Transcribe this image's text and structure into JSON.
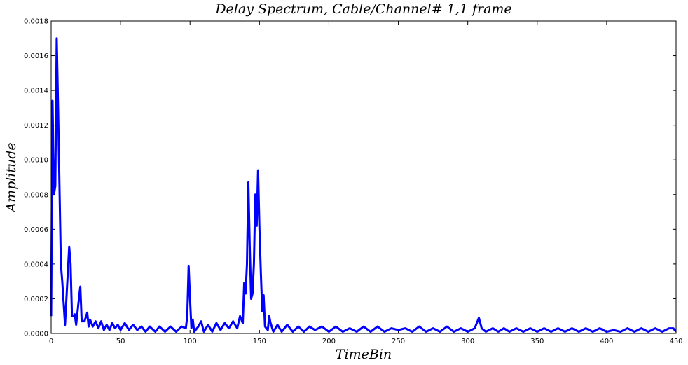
{
  "chart_data": {
    "type": "line",
    "title": "Delay Spectrum, Cable/Channel# 1,1 frame",
    "xlabel": "TimeBin",
    "ylabel": "Amplitude",
    "color": "#0000ff",
    "x": [
      0,
      1,
      2,
      3,
      4,
      5,
      7,
      8,
      10,
      11,
      13,
      14,
      15,
      16,
      17,
      18,
      20,
      21,
      22,
      24,
      26,
      27,
      28,
      30,
      32,
      34,
      36,
      38,
      40,
      42,
      44,
      46,
      48,
      50,
      53,
      56,
      59,
      62,
      65,
      68,
      71,
      75,
      78,
      82,
      86,
      90,
      94,
      97,
      98,
      99,
      100,
      101,
      102,
      103,
      106,
      108,
      110,
      113,
      116,
      119,
      122,
      125,
      128,
      131,
      134,
      136,
      138,
      139,
      140,
      141,
      142,
      143,
      144,
      145,
      146,
      147,
      148,
      149,
      150,
      151,
      152,
      153,
      154,
      156,
      157,
      158,
      160,
      163,
      166,
      170,
      174,
      178,
      182,
      186,
      190,
      195,
      200,
      205,
      210,
      215,
      220,
      225,
      230,
      235,
      240,
      245,
      250,
      255,
      260,
      265,
      270,
      275,
      280,
      285,
      290,
      295,
      300,
      305,
      308,
      310,
      313,
      318,
      322,
      326,
      330,
      335,
      340,
      345,
      350,
      355,
      360,
      365,
      370,
      375,
      380,
      385,
      390,
      395,
      400,
      405,
      410,
      415,
      420,
      425,
      430,
      435,
      440,
      445,
      448,
      450
    ],
    "values": [
      0.0001,
      0.00134,
      0.0008,
      0.00085,
      0.0017,
      0.0013,
      0.0004,
      0.0003,
      5e-05,
      0.0002,
      0.0005,
      0.0004,
      0.0001,
      0.0001,
      0.00011,
      5e-05,
      0.0002,
      0.00027,
      7e-05,
      7e-05,
      0.00012,
      4e-05,
      8e-05,
      4e-05,
      7e-05,
      3e-05,
      7e-05,
      2e-05,
      5e-05,
      2e-05,
      6e-05,
      3e-05,
      5e-05,
      2e-05,
      6e-05,
      2e-05,
      5e-05,
      2e-05,
      4e-05,
      1e-05,
      4e-05,
      1e-05,
      4e-05,
      1e-05,
      4e-05,
      1e-05,
      4e-05,
      3e-05,
      0.0001,
      0.00039,
      0.0002,
      3e-05,
      8e-05,
      1e-05,
      4e-05,
      7e-05,
      1e-05,
      5e-05,
      1e-05,
      6e-05,
      2e-05,
      6e-05,
      3e-05,
      7e-05,
      3e-05,
      0.0001,
      6e-05,
      0.00029,
      0.00023,
      0.0004,
      0.00087,
      0.0005,
      0.0002,
      0.00023,
      0.0004,
      0.0008,
      0.00062,
      0.00094,
      0.0006,
      0.00035,
      0.00013,
      0.00022,
      4e-05,
      2e-05,
      0.0001,
      6e-05,
      1e-05,
      5e-05,
      1e-05,
      5e-05,
      1e-05,
      4e-05,
      1e-05,
      4e-05,
      2e-05,
      4e-05,
      1e-05,
      4e-05,
      1e-05,
      3e-05,
      1e-05,
      4e-05,
      1e-05,
      4e-05,
      1e-05,
      3e-05,
      2e-05,
      3e-05,
      1e-05,
      4e-05,
      1e-05,
      3e-05,
      1e-05,
      4e-05,
      1e-05,
      3e-05,
      1e-05,
      3e-05,
      9e-05,
      3e-05,
      1e-05,
      3e-05,
      1e-05,
      3e-05,
      1e-05,
      3e-05,
      1e-05,
      3e-05,
      1e-05,
      3e-05,
      1e-05,
      3e-05,
      1e-05,
      3e-05,
      1e-05,
      3e-05,
      1e-05,
      3e-05,
      1e-05,
      2e-05,
      1e-05,
      3e-05,
      1e-05,
      3e-05,
      1e-05,
      3e-05,
      1e-05,
      3e-05,
      3e-05,
      1e-05
    ],
    "xlim": [
      0,
      450
    ],
    "xticks": [
      0,
      50,
      100,
      150,
      200,
      250,
      300,
      350,
      400,
      450
    ],
    "ylim": [
      0,
      0.0018
    ],
    "yticks": [
      {
        "value": 0,
        "label": "0.0000"
      },
      {
        "value": 0.0002,
        "label": "0.0002"
      },
      {
        "value": 0.0004,
        "label": "0.0004"
      },
      {
        "value": 0.0006,
        "label": "0.0006"
      },
      {
        "value": 0.0008,
        "label": "0.0008"
      },
      {
        "value": 0.001,
        "label": "0.0010"
      },
      {
        "value": 0.0012,
        "label": "0.0012"
      },
      {
        "value": 0.0014,
        "label": "0.0014"
      },
      {
        "value": 0.0016,
        "label": "0.0016"
      },
      {
        "value": 0.0018,
        "label": "0.0018"
      }
    ]
  }
}
